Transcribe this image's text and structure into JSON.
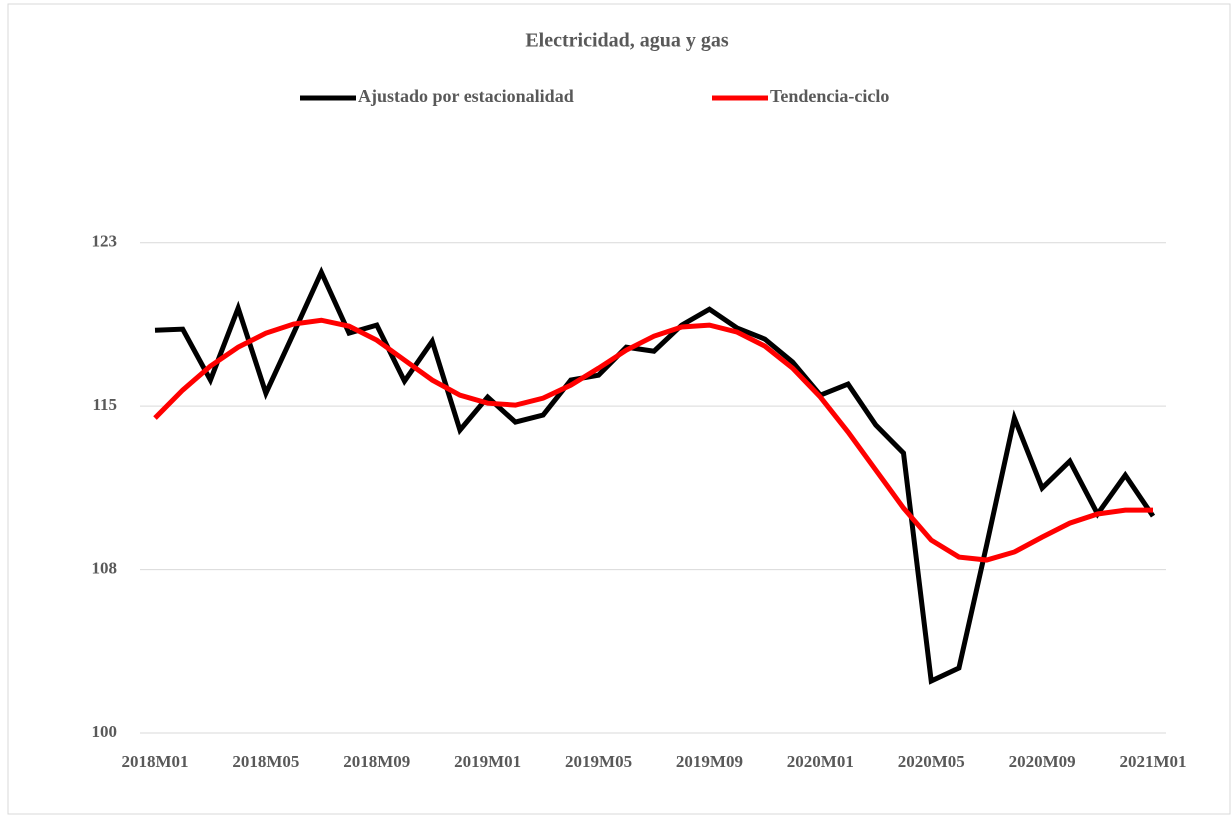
{
  "chart_data": {
    "type": "line",
    "title": "Electricidad, agua y gas",
    "categories": [
      "2018M01",
      null,
      null,
      null,
      "2018M05",
      null,
      null,
      null,
      "2018M09",
      null,
      null,
      null,
      "2019M01",
      null,
      null,
      null,
      "2019M05",
      null,
      null,
      null,
      "2019M09",
      null,
      null,
      null,
      "2020M01",
      null,
      null,
      null,
      "2020M05",
      null,
      null,
      null,
      "2020M09",
      null,
      null,
      null,
      "2021M01"
    ],
    "series": [
      {
        "name": "Ajustado por estacionalidad",
        "color": "#000000",
        "values": [
          118.98,
          119.03,
          116.63,
          120.02,
          116.01,
          118.84,
          121.71,
          118.84,
          119.22,
          116.58,
          118.46,
          114.27,
          115.83,
          114.65,
          114.98,
          116.63,
          116.86,
          118.18,
          117.99,
          119.22,
          119.97,
          119.08,
          118.56,
          117.48,
          115.92,
          116.44,
          114.51,
          113.19,
          102.45,
          103.06,
          108.86,
          114.84,
          111.54,
          112.81,
          110.32,
          112.15,
          110.22
        ]
      },
      {
        "name": "Tendencia-ciclo",
        "color": "#ff0000",
        "values": [
          114.84,
          116.16,
          117.29,
          118.18,
          118.84,
          119.27,
          119.45,
          119.17,
          118.51,
          117.57,
          116.63,
          115.92,
          115.54,
          115.45,
          115.78,
          116.39,
          117.19,
          118.04,
          118.7,
          119.13,
          119.22,
          118.89,
          118.23,
          117.19,
          115.83,
          114.18,
          112.39,
          110.6,
          109.09,
          108.29,
          108.15,
          108.53,
          109.23,
          109.89,
          110.32,
          110.5,
          110.5
        ]
      }
    ],
    "ylim": [
      100,
      127
    ],
    "yticks": [
      100,
      {
        "value": 107.7,
        "label": "108"
      },
      {
        "value": 115.4,
        "label": "115"
      },
      {
        "value": 123.1,
        "label": "123"
      }
    ],
    "grid": true
  }
}
